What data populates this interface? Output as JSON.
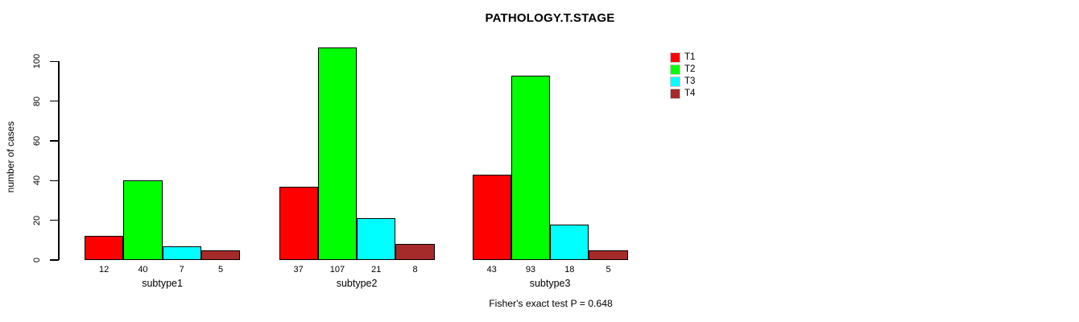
{
  "title": "PATHOLOGY.T.STAGE",
  "footer_note": "Fisher's exact test P = 0.648",
  "y_axis": {
    "label": "number of cases",
    "ticks": [
      0,
      20,
      40,
      60,
      80,
      100
    ]
  },
  "legend": {
    "position": "top-right",
    "items": [
      {
        "label": "T1",
        "color": "#ff0000"
      },
      {
        "label": "T2",
        "color": "#00ff00"
      },
      {
        "label": "T3",
        "color": "#00ffff"
      },
      {
        "label": "T4",
        "color": "#a52a2a"
      }
    ]
  },
  "chart_data": {
    "type": "bar",
    "grouped": true,
    "title": "PATHOLOGY.T.STAGE",
    "xlabel": "",
    "ylabel": "number of cases",
    "ylim": [
      0,
      100
    ],
    "grid": false,
    "legend_position": "top-right",
    "categories": [
      "subtype1",
      "subtype2",
      "subtype3"
    ],
    "series": [
      {
        "name": "T1",
        "color": "#ff0000",
        "values": [
          12,
          37,
          43
        ]
      },
      {
        "name": "T2",
        "color": "#00ff00",
        "values": [
          40,
          107,
          93
        ]
      },
      {
        "name": "T3",
        "color": "#00ffff",
        "values": [
          7,
          21,
          18
        ]
      },
      {
        "name": "T4",
        "color": "#a52a2a",
        "values": [
          5,
          8,
          5
        ]
      }
    ],
    "bar_value_labels": {
      "subtype1": [
        12,
        40,
        7,
        5
      ],
      "subtype2": [
        37,
        107,
        21,
        8
      ],
      "subtype3": [
        43,
        93,
        18,
        5
      ]
    },
    "annotation": "Fisher's exact test P = 0.648"
  }
}
